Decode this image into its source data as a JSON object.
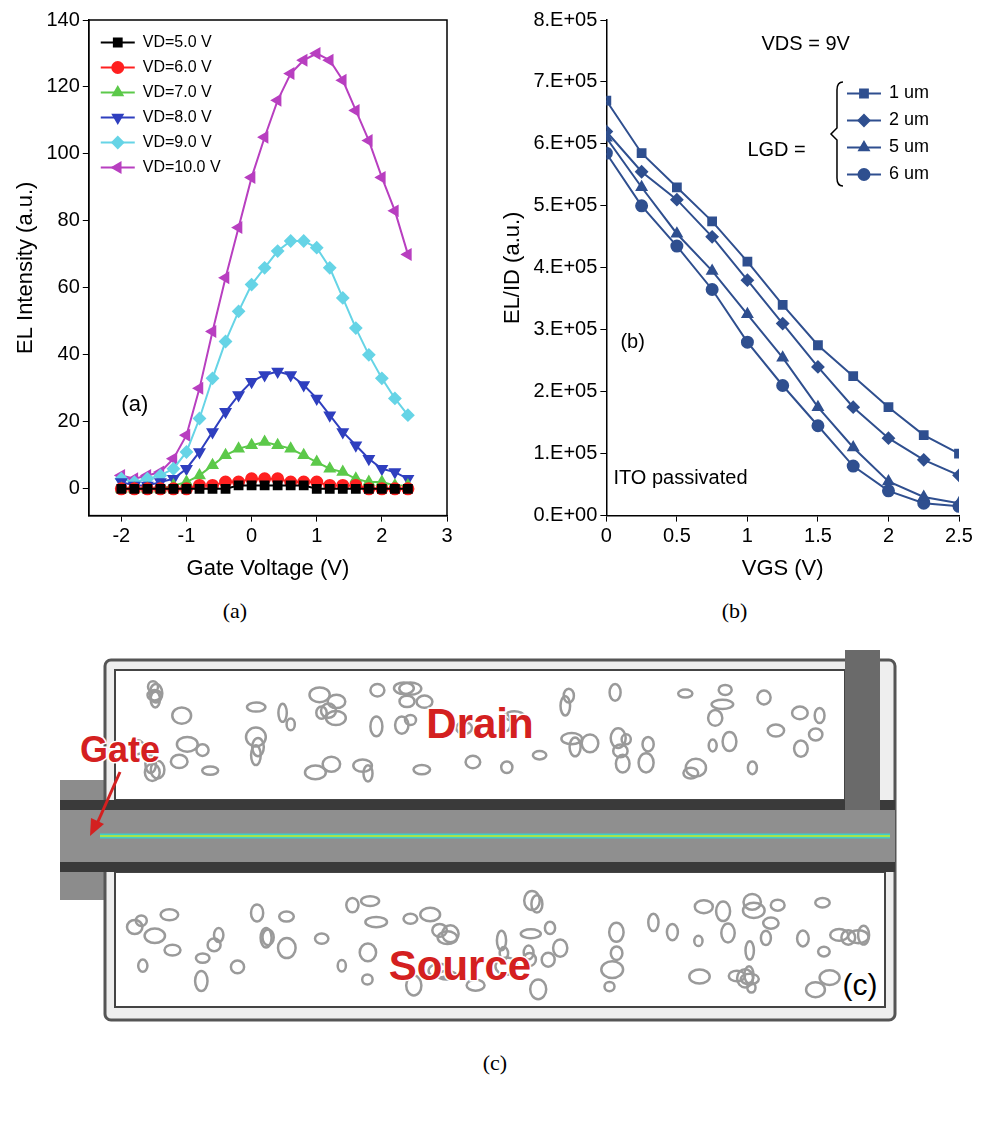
{
  "chart_data": [
    {
      "type": "line",
      "x_label": "Gate Voltage (V)",
      "y_label": "EL Intensity (a.u.)",
      "x": [
        -2,
        -1.8,
        -1.6,
        -1.4,
        -1.2,
        -1,
        -0.8,
        -0.6,
        -0.4,
        -0.2,
        0,
        0.2,
        0.4,
        0.6,
        0.8,
        1,
        1.2,
        1.4,
        1.6,
        1.8,
        2,
        2.2,
        2.4
      ],
      "series": [
        {
          "name": "VD=5.0 V",
          "color": "#000000",
          "marker": "square",
          "values": [
            0,
            0,
            0,
            0,
            0,
            0,
            0,
            0,
            0,
            1,
            1,
            1,
            1,
            1,
            1,
            0,
            0,
            0,
            0,
            0,
            0,
            0,
            0
          ]
        },
        {
          "name": "VD=6.0 V",
          "color": "#ff2020",
          "marker": "circle",
          "values": [
            0,
            0,
            0,
            0,
            0,
            0,
            1,
            1,
            2,
            2,
            3,
            3,
            3,
            2,
            2,
            2,
            1,
            1,
            1,
            0,
            0,
            0,
            0
          ]
        },
        {
          "name": "VD=7.0 V",
          "color": "#5cc94a",
          "marker": "triangle",
          "values": [
            0,
            0,
            0,
            0,
            1,
            2,
            4,
            7,
            10,
            12,
            13,
            14,
            13,
            12,
            10,
            8,
            6,
            5,
            3,
            2,
            2,
            1,
            1
          ]
        },
        {
          "name": "VD=8.0 V",
          "color": "#2f3fbf",
          "marker": "triangle-down",
          "values": [
            2,
            1,
            1,
            2,
            3,
            6,
            11,
            17,
            23,
            28,
            32,
            34,
            35,
            34,
            31,
            27,
            22,
            17,
            13,
            9,
            6,
            5,
            3
          ]
        },
        {
          "name": "VD=9.0 V",
          "color": "#66d4e6",
          "marker": "diamond",
          "values": [
            3,
            2,
            3,
            4,
            6,
            11,
            21,
            33,
            44,
            53,
            61,
            66,
            71,
            74,
            74,
            72,
            66,
            57,
            48,
            40,
            33,
            27,
            22
          ]
        },
        {
          "name": "VD=10.0 V",
          "color": "#b83fc0",
          "marker": "triangle-left",
          "values": [
            4,
            3,
            4,
            5,
            9,
            16,
            30,
            47,
            63,
            78,
            93,
            105,
            116,
            124,
            128,
            130,
            128,
            122,
            113,
            104,
            93,
            83,
            70
          ]
        }
      ],
      "xlim": [
        -2.5,
        3
      ],
      "xticks": [
        -2,
        -1,
        0,
        1,
        2,
        3
      ],
      "ylim": [
        -8,
        140
      ],
      "yticks": [
        0,
        20,
        40,
        60,
        80,
        100,
        120,
        140
      ],
      "grid": false,
      "legend": "upper left",
      "annotations": [
        {
          "text": "(a)",
          "x": -2.0,
          "y": 25
        }
      ]
    },
    {
      "type": "line",
      "x_label": "VGS (V)",
      "y_label": "EL/ID (a.u.)",
      "color": "#2f4f8f",
      "x": [
        0,
        0.25,
        0.5,
        0.75,
        1,
        1.25,
        1.5,
        1.75,
        2,
        2.25,
        2.5
      ],
      "series": [
        {
          "name": "1 um",
          "marker": "square",
          "values": [
            670000,
            585000,
            530000,
            475000,
            410000,
            340000,
            275000,
            225000,
            175000,
            130000,
            100000
          ]
        },
        {
          "name": "2 um",
          "marker": "diamond",
          "values": [
            620000,
            555000,
            510000,
            450000,
            380000,
            310000,
            240000,
            175000,
            125000,
            90000,
            65000
          ]
        },
        {
          "name": "5 um",
          "marker": "triangle",
          "values": [
            610000,
            530000,
            455000,
            395000,
            325000,
            255000,
            175000,
            110000,
            55000,
            30000,
            20000
          ]
        },
        {
          "name": "6 um",
          "marker": "circle",
          "values": [
            585000,
            500000,
            435000,
            365000,
            280000,
            210000,
            145000,
            80000,
            40000,
            20000,
            15000
          ]
        }
      ],
      "xlim": [
        0,
        2.5
      ],
      "xticks": [
        0,
        0.5,
        1,
        1.5,
        2,
        2.5
      ],
      "ylim": [
        0,
        800000
      ],
      "yticks": [
        {
          "value": 0,
          "label": "0.E+00"
        },
        {
          "value": 100000,
          "label": "1.E+05"
        },
        {
          "value": 200000,
          "label": "2.E+05"
        },
        {
          "value": 300000,
          "label": "3.E+05"
        },
        {
          "value": 400000,
          "label": "4.E+05"
        },
        {
          "value": 500000,
          "label": "5.E+05"
        },
        {
          "value": 600000,
          "label": "6.E+05"
        },
        {
          "value": 700000,
          "label": "7.E+05"
        },
        {
          "value": 800000,
          "label": "8.E+05"
        }
      ],
      "grid": false,
      "legend": "upper right",
      "annotations": [
        {
          "text": "VDS = 9V",
          "x": 1.1,
          "y": 760000
        },
        {
          "text": "LGD =",
          "x": 1.0,
          "y": 590000
        },
        {
          "text": "(b)",
          "x": 0.1,
          "y": 280000
        },
        {
          "text": "ITO passivated",
          "x": 0.05,
          "y": 60000
        }
      ]
    }
  ],
  "diagram": {
    "labels": {
      "gate": "Gate",
      "drain": "Drain",
      "source": "Source"
    },
    "panel_label": "(c)"
  },
  "captions": [
    "(a)",
    "(b)",
    "(c)"
  ]
}
